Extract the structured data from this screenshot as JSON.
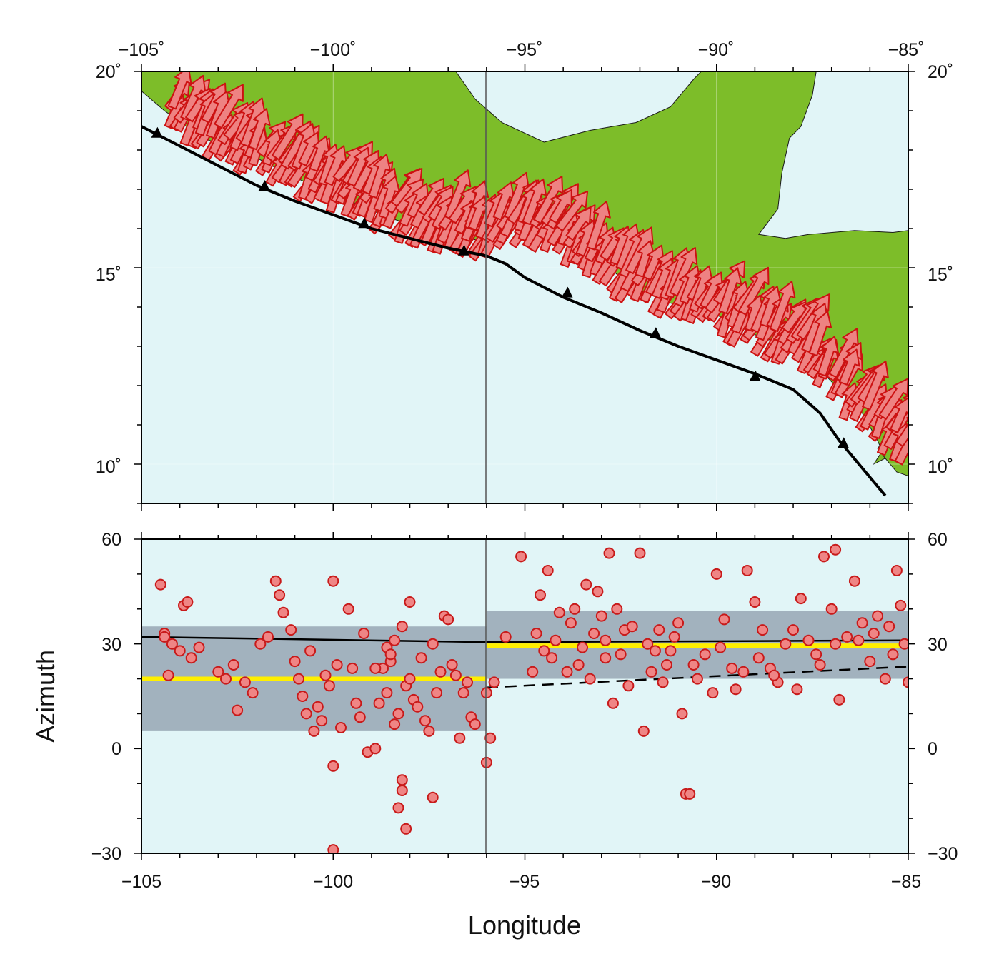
{
  "colors": {
    "ocean": "#e1f5f7",
    "land": "#7dbd29",
    "arrow_fill": "#ee8282",
    "arrow_stroke": "#cc1111",
    "dot_fill": "#ef8585",
    "dot_stroke": "#c81a1a",
    "band": "#a2b2be",
    "mean_line": "#ffef00",
    "trench": "#000000"
  },
  "map": {
    "lon_ticks": [
      "−105˚",
      "−100˚",
      "−95˚",
      "−90˚",
      "−85˚"
    ],
    "lat_ticks_left": [
      "20˚",
      "15˚",
      "10˚"
    ],
    "lat_ticks_right": [
      "20˚",
      "15˚",
      "10˚"
    ],
    "lon_range": [
      -105,
      -85
    ],
    "lat_range": [
      9,
      20
    ],
    "divider_lon": -96,
    "trench": [
      [
        -105,
        18.6
      ],
      [
        -104,
        18.1
      ],
      [
        -103,
        17.6
      ],
      [
        -102,
        17.1
      ],
      [
        -101,
        16.7
      ],
      [
        -100,
        16.35
      ],
      [
        -99,
        16.0
      ],
      [
        -98,
        15.75
      ],
      [
        -97,
        15.5
      ],
      [
        -96,
        15.3
      ],
      [
        -95.5,
        15.1
      ],
      [
        -95,
        14.75
      ],
      [
        -94,
        14.25
      ],
      [
        -93,
        13.85
      ],
      [
        -92,
        13.4
      ],
      [
        -91,
        13.0
      ],
      [
        -90,
        12.65
      ],
      [
        -89,
        12.3
      ],
      [
        -88,
        11.9
      ],
      [
        -87.3,
        11.3
      ],
      [
        -86.8,
        10.6
      ],
      [
        -86.2,
        9.9
      ],
      [
        -85.6,
        9.2
      ]
    ],
    "triangles": [
      [
        -104.6,
        18.35
      ],
      [
        -101.8,
        17.0
      ],
      [
        -99.2,
        16.05
      ],
      [
        -96.6,
        15.35
      ],
      [
        -93.9,
        14.28
      ],
      [
        -91.6,
        13.25
      ],
      [
        -89.0,
        12.15
      ],
      [
        -86.7,
        10.45
      ]
    ],
    "land_polygons": [
      [
        [
          -105,
          20
        ],
        [
          -96.8,
          20
        ],
        [
          -96.3,
          19.3
        ],
        [
          -95.6,
          18.7
        ],
        [
          -94.5,
          18.2
        ],
        [
          -93.3,
          18.5
        ],
        [
          -92.1,
          18.7
        ],
        [
          -91.2,
          19.1
        ],
        [
          -90.6,
          19.8
        ],
        [
          -90.4,
          20
        ],
        [
          -87.4,
          20
        ],
        [
          -87.5,
          19.4
        ],
        [
          -87.8,
          18.6
        ],
        [
          -88.1,
          18.3
        ],
        [
          -88.3,
          17.4
        ],
        [
          -88.4,
          16.5
        ],
        [
          -88.9,
          15.85
        ],
        [
          -88.2,
          15.75
        ],
        [
          -87.6,
          15.85
        ],
        [
          -86.4,
          15.95
        ],
        [
          -85.4,
          15.9
        ],
        [
          -85,
          15.95
        ],
        [
          -85,
          11.1
        ],
        [
          -85.7,
          10.3
        ],
        [
          -85.9,
          10.0
        ],
        [
          -85.6,
          10.15
        ],
        [
          -85.8,
          10.6
        ],
        [
          -86.2,
          11.3
        ],
        [
          -86.8,
          11.9
        ],
        [
          -87.4,
          12.5
        ],
        [
          -87.8,
          13.0
        ],
        [
          -88.8,
          13.2
        ],
        [
          -90.0,
          13.8
        ],
        [
          -91.2,
          14.1
        ],
        [
          -92.2,
          14.5
        ],
        [
          -93.4,
          15.5
        ],
        [
          -94.2,
          16.1
        ],
        [
          -95.0,
          16.1
        ],
        [
          -96.2,
          15.7
        ],
        [
          -97.4,
          15.9
        ],
        [
          -98.6,
          16.3
        ],
        [
          -99.8,
          16.8
        ],
        [
          -101.0,
          17.3
        ],
        [
          -102.2,
          17.9
        ],
        [
          -103.4,
          18.3
        ],
        [
          -104.4,
          19.0
        ],
        [
          -105,
          19.5
        ]
      ],
      [
        [
          -85,
          11.1
        ],
        [
          -85.4,
          10.9
        ],
        [
          -85.8,
          10.4
        ],
        [
          -85.6,
          10.15
        ],
        [
          -85.3,
          9.8
        ],
        [
          -85.0,
          9.7
        ]
      ]
    ],
    "arrow_azimuth_deg": 28
  },
  "chart_data": {
    "type": "scatter",
    "xlabel": "Longitude",
    "ylabel": "Azimuth",
    "xlim": [
      -105,
      -85
    ],
    "ylim": [
      -30,
      60
    ],
    "x_ticks": [
      "−105",
      "−100",
      "−95",
      "−90",
      "−85"
    ],
    "y_ticks_left": [
      "60",
      "30",
      "0",
      "−30"
    ],
    "y_ticks_right": [
      "60",
      "30",
      "0",
      "−30"
    ],
    "segments": [
      {
        "x_range": [
          -105,
          -96
        ],
        "band": [
          5,
          35
        ],
        "mean": 20,
        "upper_line": [
          [
            -105,
            32
          ],
          [
            -96,
            30.5
          ]
        ]
      },
      {
        "x_range": [
          -96,
          -85
        ],
        "band": [
          20,
          39.5
        ],
        "mean": 29.5,
        "upper_line": [
          [
            -96,
            30.5
          ],
          [
            -85,
            31
          ]
        ],
        "dashed_line": [
          [
            -96,
            17.5
          ],
          [
            -85,
            23.5
          ]
        ]
      }
    ],
    "points": [
      [
        -104.5,
        47
      ],
      [
        -104.4,
        33
      ],
      [
        -104.2,
        30
      ],
      [
        -104.0,
        28
      ],
      [
        -103.9,
        41
      ],
      [
        -103.8,
        42
      ],
      [
        -103.7,
        26
      ],
      [
        -103.5,
        29
      ],
      [
        -104.3,
        21
      ],
      [
        -104.4,
        32
      ],
      [
        -103.0,
        22
      ],
      [
        -102.8,
        20
      ],
      [
        -102.6,
        24
      ],
      [
        -102.5,
        11
      ],
      [
        -102.3,
        19
      ],
      [
        -102.1,
        16
      ],
      [
        -101.9,
        30
      ],
      [
        -101.7,
        32
      ],
      [
        -101.5,
        48
      ],
      [
        -101.4,
        44
      ],
      [
        -101.3,
        39
      ],
      [
        -101.1,
        34
      ],
      [
        -101.0,
        25
      ],
      [
        -100.9,
        20
      ],
      [
        -100.8,
        15
      ],
      [
        -100.7,
        10
      ],
      [
        -100.6,
        28
      ],
      [
        -100.5,
        5
      ],
      [
        -100.4,
        12
      ],
      [
        -100.3,
        8
      ],
      [
        -100.2,
        21
      ],
      [
        -100.1,
        18
      ],
      [
        -100.0,
        48
      ],
      [
        -99.9,
        24
      ],
      [
        -99.8,
        6
      ],
      [
        -99.6,
        40
      ],
      [
        -99.5,
        23
      ],
      [
        -99.4,
        13
      ],
      [
        -99.3,
        9
      ],
      [
        -99.1,
        -1
      ],
      [
        -98.9,
        0
      ],
      [
        -98.7,
        23
      ],
      [
        -98.6,
        29
      ],
      [
        -98.5,
        25
      ],
      [
        -98.4,
        31
      ],
      [
        -98.3,
        10
      ],
      [
        -98.2,
        35
      ],
      [
        -98.1,
        18
      ],
      [
        -98.0,
        20
      ],
      [
        -97.9,
        14
      ],
      [
        -97.8,
        12
      ],
      [
        -97.7,
        26
      ],
      [
        -97.6,
        8
      ],
      [
        -97.5,
        5
      ],
      [
        -97.4,
        30
      ],
      [
        -97.3,
        16
      ],
      [
        -97.2,
        22
      ],
      [
        -97.1,
        38
      ],
      [
        -97.0,
        37
      ],
      [
        -96.9,
        24
      ],
      [
        -96.8,
        21
      ],
      [
        -96.7,
        3
      ],
      [
        -96.6,
        16
      ],
      [
        -96.5,
        19
      ],
      [
        -96.4,
        9
      ],
      [
        -96.3,
        7
      ],
      [
        -98.2,
        -9
      ],
      [
        -98.2,
        -12
      ],
      [
        -98.3,
        -17
      ],
      [
        -98.1,
        -23
      ],
      [
        -97.4,
        -14
      ],
      [
        -100.0,
        -29
      ],
      [
        -100.0,
        -5
      ],
      [
        -98.0,
        42
      ],
      [
        -98.5,
        27
      ],
      [
        -98.9,
        23
      ],
      [
        -99.2,
        33
      ],
      [
        -98.6,
        16
      ],
      [
        -98.4,
        7
      ],
      [
        -98.8,
        13
      ],
      [
        -96.0,
        16
      ],
      [
        -95.8,
        19
      ],
      [
        -95.5,
        32
      ],
      [
        -95.9,
        3
      ],
      [
        -96.0,
        -4
      ],
      [
        -95.1,
        55
      ],
      [
        -94.7,
        33
      ],
      [
        -94.6,
        44
      ],
      [
        -94.4,
        51
      ],
      [
        -94.3,
        26
      ],
      [
        -94.1,
        39
      ],
      [
        -93.9,
        22
      ],
      [
        -93.8,
        36
      ],
      [
        -93.7,
        40
      ],
      [
        -93.5,
        29
      ],
      [
        -93.4,
        47
      ],
      [
        -93.2,
        33
      ],
      [
        -93.1,
        45
      ],
      [
        -93.0,
        38
      ],
      [
        -92.9,
        31
      ],
      [
        -92.8,
        56
      ],
      [
        -92.7,
        13
      ],
      [
        -92.6,
        40
      ],
      [
        -92.5,
        27
      ],
      [
        -92.4,
        34
      ],
      [
        -92.2,
        35
      ],
      [
        -92.0,
        56
      ],
      [
        -91.9,
        5
      ],
      [
        -91.8,
        30
      ],
      [
        -91.7,
        22
      ],
      [
        -91.5,
        34
      ],
      [
        -91.4,
        19
      ],
      [
        -91.3,
        24
      ],
      [
        -91.2,
        28
      ],
      [
        -91.0,
        36
      ],
      [
        -90.9,
        10
      ],
      [
        -90.8,
        -13
      ],
      [
        -90.7,
        -13
      ],
      [
        -90.5,
        20
      ],
      [
        -90.3,
        27
      ],
      [
        -90.0,
        50
      ],
      [
        -89.8,
        37
      ],
      [
        -89.6,
        23
      ],
      [
        -89.5,
        17
      ],
      [
        -89.2,
        51
      ],
      [
        -89.0,
        42
      ],
      [
        -88.8,
        34
      ],
      [
        -88.6,
        23
      ],
      [
        -88.4,
        19
      ],
      [
        -88.2,
        30
      ],
      [
        -88.0,
        34
      ],
      [
        -87.8,
        43
      ],
      [
        -87.6,
        31
      ],
      [
        -87.4,
        27
      ],
      [
        -87.2,
        55
      ],
      [
        -87.0,
        40
      ],
      [
        -86.9,
        57
      ],
      [
        -86.8,
        14
      ],
      [
        -86.6,
        32
      ],
      [
        -86.4,
        48
      ],
      [
        -86.2,
        36
      ],
      [
        -86.0,
        25
      ],
      [
        -85.8,
        38
      ],
      [
        -85.6,
        20
      ],
      [
        -85.5,
        35
      ],
      [
        -85.3,
        51
      ],
      [
        -85.2,
        41
      ],
      [
        -85.1,
        30
      ],
      [
        -85.0,
        19
      ],
      [
        -85.4,
        27
      ],
      [
        -94.8,
        22
      ],
      [
        -94.5,
        28
      ],
      [
        -94.2,
        31
      ],
      [
        -93.6,
        24
      ],
      [
        -93.3,
        20
      ],
      [
        -92.3,
        18
      ],
      [
        -91.6,
        28
      ],
      [
        -90.6,
        24
      ],
      [
        -90.1,
        16
      ],
      [
        -89.9,
        29
      ],
      [
        -89.3,
        22
      ],
      [
        -88.9,
        26
      ],
      [
        -88.5,
        21
      ],
      [
        -87.9,
        17
      ],
      [
        -87.3,
        24
      ],
      [
        -86.9,
        30
      ],
      [
        -86.3,
        31
      ],
      [
        -85.9,
        33
      ],
      [
        -92.9,
        26
      ],
      [
        -91.1,
        32
      ]
    ]
  }
}
